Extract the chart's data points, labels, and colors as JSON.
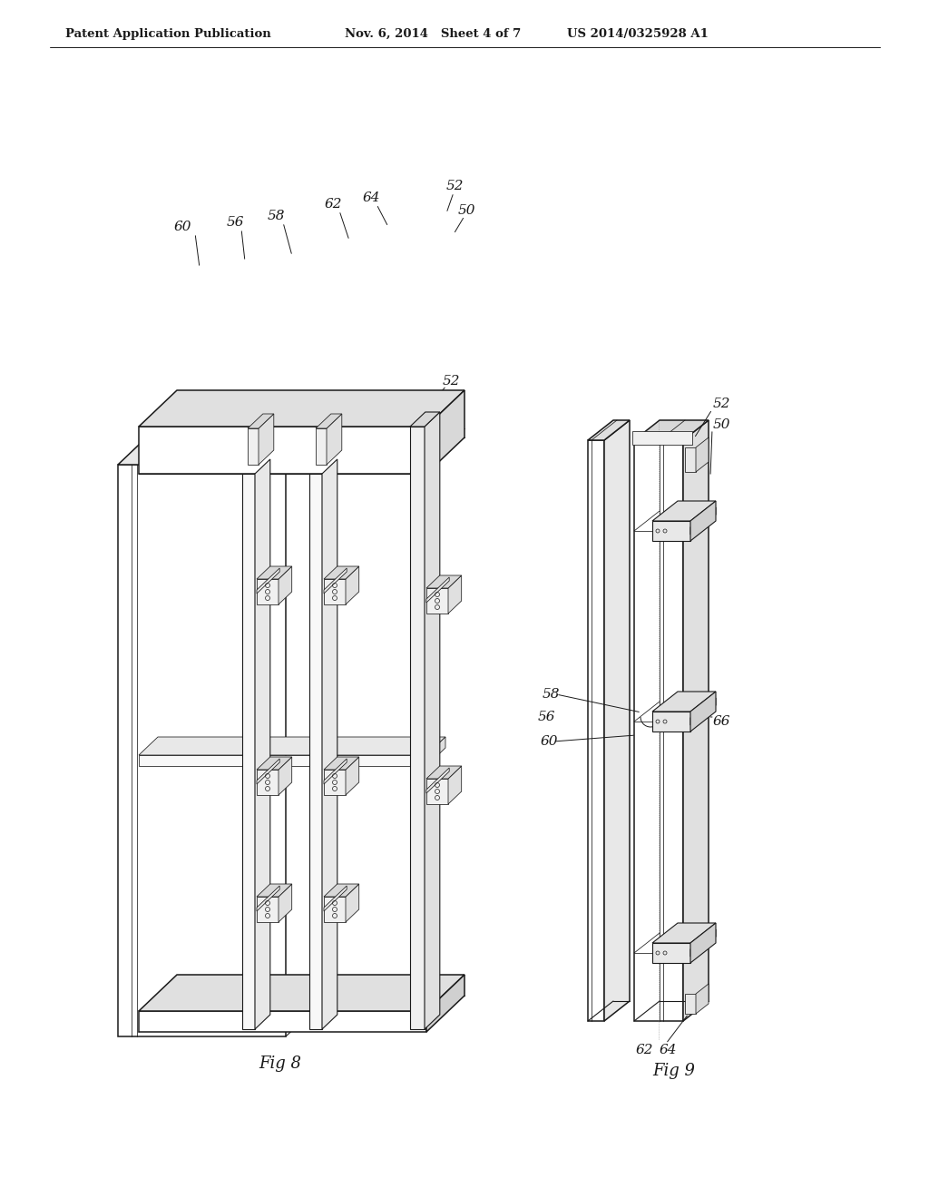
{
  "bg_color": "#ffffff",
  "line_color": "#1a1a1a",
  "header_left": "Patent Application Publication",
  "header_mid": "Nov. 6, 2014   Sheet 4 of 7",
  "header_right": "US 2014/0325928 A1",
  "fig8_label": "Fig 8",
  "fig9_label": "Fig 9"
}
